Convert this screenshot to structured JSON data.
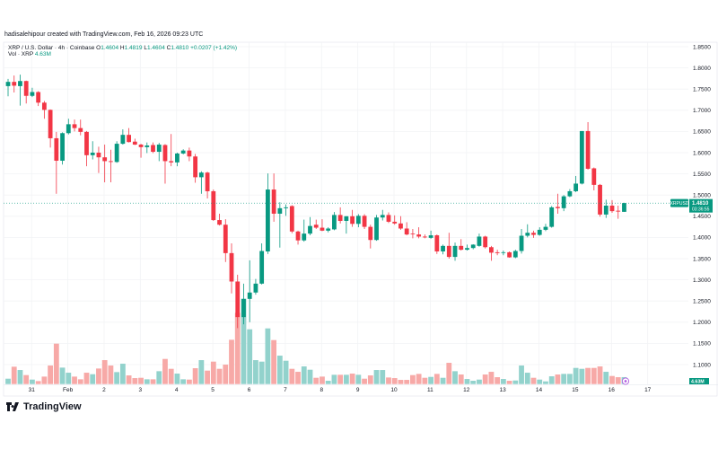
{
  "header": {
    "credit": "hadisalehipour created with TradingView.com, Feb 16, 2026 09:23 UTC"
  },
  "legend": {
    "symbol": "XRP / U.S. Dollar · 4h · Coinbase",
    "open_label": "O",
    "open": "1.4604",
    "high_label": "H",
    "high": "1.4819",
    "low_label": "L",
    "low": "1.4604",
    "close_label": "C",
    "close": "1.4810",
    "change": "+0.0207 (+1.42%)",
    "volume_label": "Vol · XRP",
    "volume": "4.63M"
  },
  "price_tag": {
    "symbol": "XRPUSD",
    "price": "1.4810",
    "countdown": "03:36:55"
  },
  "volume_tag": "4.63M",
  "brand": "TradingView",
  "colors": {
    "up": "#089981",
    "down": "#f23645",
    "volume_up": "#92d2cc",
    "volume_down": "#f7a9a7",
    "grid": "#f2f3f5",
    "event_marker": "#b060e0"
  },
  "chart_data": {
    "type": "candlestick",
    "interval": "4h",
    "ylim": [
      1.08,
      1.87
    ],
    "y_ticks": [
      "1.8500",
      "1.8000",
      "1.7500",
      "1.7000",
      "1.6500",
      "1.6000",
      "1.5500",
      "1.5000",
      "1.4500",
      "1.4000",
      "1.3500",
      "1.3000",
      "1.2500",
      "1.2000",
      "1.1500",
      "1.1000"
    ],
    "x_tick_labels": [
      "31",
      "Feb",
      "2",
      "3",
      "4",
      "5",
      "6",
      "7",
      "8",
      "9",
      "10",
      "11",
      "12",
      "13",
      "14",
      "15",
      "16",
      "17"
    ],
    "grid": true,
    "last_price": 1.481,
    "candles": [
      [
        1.757,
        1.774,
        1.733,
        1.767,
        3.6
      ],
      [
        1.767,
        1.782,
        1.742,
        1.758,
        11.6
      ],
      [
        1.757,
        1.784,
        1.711,
        1.769,
        9.4
      ],
      [
        1.769,
        1.77,
        1.716,
        1.734,
        6.0
      ],
      [
        1.734,
        1.753,
        1.731,
        1.743,
        3.0
      ],
      [
        1.743,
        1.745,
        1.71,
        1.718,
        2.0
      ],
      [
        1.718,
        1.722,
        1.68,
        1.701,
        5.0
      ],
      [
        1.701,
        1.702,
        1.612,
        1.634,
        12.4
      ],
      [
        1.634,
        1.649,
        1.503,
        1.581,
        27.0
      ],
      [
        1.581,
        1.648,
        1.572,
        1.646,
        11.0
      ],
      [
        1.646,
        1.68,
        1.643,
        1.667,
        7.6
      ],
      [
        1.667,
        1.678,
        1.65,
        1.658,
        5.0
      ],
      [
        1.658,
        1.678,
        1.641,
        1.649,
        3.2
      ],
      [
        1.649,
        1.651,
        1.568,
        1.594,
        7.6
      ],
      [
        1.594,
        1.627,
        1.584,
        1.6,
        6.6
      ],
      [
        1.6,
        1.614,
        1.552,
        1.589,
        10.4
      ],
      [
        1.589,
        1.619,
        1.53,
        1.58,
        16.0
      ],
      [
        1.58,
        1.607,
        1.53,
        1.578,
        12.4
      ],
      [
        1.578,
        1.627,
        1.576,
        1.621,
        8.0
      ],
      [
        1.621,
        1.655,
        1.619,
        1.642,
        13.6
      ],
      [
        1.642,
        1.658,
        1.624,
        1.625,
        5.8
      ],
      [
        1.626,
        1.633,
        1.618,
        1.619,
        4.0
      ],
      [
        1.619,
        1.621,
        1.588,
        1.613,
        4.2
      ],
      [
        1.613,
        1.624,
        1.599,
        1.617,
        3.2
      ],
      [
        1.618,
        1.624,
        1.599,
        1.602,
        3.2
      ],
      [
        1.602,
        1.623,
        1.58,
        1.619,
        8.6
      ],
      [
        1.618,
        1.62,
        1.527,
        1.58,
        16.8
      ],
      [
        1.58,
        1.644,
        1.568,
        1.577,
        10.2
      ],
      [
        1.577,
        1.6,
        1.568,
        1.598,
        7.0
      ],
      [
        1.598,
        1.608,
        1.596,
        1.605,
        3.2
      ],
      [
        1.605,
        1.612,
        1.58,
        1.591,
        3.0
      ],
      [
        1.591,
        1.597,
        1.529,
        1.542,
        10.6
      ],
      [
        1.542,
        1.556,
        1.503,
        1.553,
        16.0
      ],
      [
        1.553,
        1.555,
        1.492,
        1.509,
        9.0
      ],
      [
        1.509,
        1.513,
        1.439,
        1.441,
        15.0
      ],
      [
        1.441,
        1.456,
        1.428,
        1.43,
        10.2
      ],
      [
        1.43,
        1.443,
        1.342,
        1.363,
        13.0
      ],
      [
        1.363,
        1.386,
        1.268,
        1.296,
        29.6
      ],
      [
        1.296,
        1.312,
        1.186,
        1.212,
        47.6
      ],
      [
        1.212,
        1.291,
        1.195,
        1.255,
        57.0
      ],
      [
        1.255,
        1.346,
        1.2,
        1.27,
        36.6
      ],
      [
        1.27,
        1.302,
        1.265,
        1.291,
        16.0
      ],
      [
        1.291,
        1.386,
        1.289,
        1.368,
        15.0
      ],
      [
        1.367,
        1.551,
        1.361,
        1.513,
        37.2
      ],
      [
        1.513,
        1.551,
        1.437,
        1.456,
        29.4
      ],
      [
        1.456,
        1.483,
        1.376,
        1.469,
        19.0
      ],
      [
        1.469,
        1.478,
        1.451,
        1.471,
        15.6
      ],
      [
        1.474,
        1.476,
        1.41,
        1.414,
        10.2
      ],
      [
        1.414,
        1.416,
        1.383,
        1.393,
        8.2
      ],
      [
        1.393,
        1.442,
        1.39,
        1.409,
        11.8
      ],
      [
        1.409,
        1.448,
        1.405,
        1.427,
        9.6
      ],
      [
        1.43,
        1.442,
        1.42,
        1.423,
        4.2
      ],
      [
        1.423,
        1.443,
        1.415,
        1.416,
        5.0
      ],
      [
        1.416,
        1.424,
        1.412,
        1.421,
        2.2
      ],
      [
        1.419,
        1.46,
        1.417,
        1.453,
        6.2
      ],
      [
        1.453,
        1.471,
        1.433,
        1.439,
        6.2
      ],
      [
        1.439,
        1.45,
        1.409,
        1.45,
        6.2
      ],
      [
        1.45,
        1.465,
        1.425,
        1.432,
        7.0
      ],
      [
        1.432,
        1.455,
        1.424,
        1.451,
        6.2
      ],
      [
        1.451,
        1.455,
        1.42,
        1.425,
        3.6
      ],
      [
        1.425,
        1.43,
        1.374,
        1.394,
        5.8
      ],
      [
        1.394,
        1.453,
        1.392,
        1.447,
        9.4
      ],
      [
        1.447,
        1.465,
        1.44,
        1.453,
        9.4
      ],
      [
        1.453,
        1.459,
        1.434,
        1.437,
        4.4
      ],
      [
        1.437,
        1.452,
        1.43,
        1.433,
        4.0
      ],
      [
        1.433,
        1.45,
        1.418,
        1.421,
        2.8
      ],
      [
        1.421,
        1.436,
        1.405,
        1.407,
        2.8
      ],
      [
        1.409,
        1.42,
        1.398,
        1.408,
        6.0
      ],
      [
        1.407,
        1.424,
        1.398,
        1.402,
        6.8
      ],
      [
        1.402,
        1.407,
        1.398,
        1.4,
        4.2
      ],
      [
        1.399,
        1.416,
        1.397,
        1.405,
        4.8
      ],
      [
        1.405,
        1.407,
        1.361,
        1.367,
        6.8
      ],
      [
        1.367,
        1.383,
        1.36,
        1.38,
        4.2
      ],
      [
        1.38,
        1.411,
        1.35,
        1.354,
        14.2
      ],
      [
        1.354,
        1.388,
        1.345,
        1.38,
        8.6
      ],
      [
        1.38,
        1.396,
        1.369,
        1.371,
        6.4
      ],
      [
        1.371,
        1.383,
        1.369,
        1.375,
        3.4
      ],
      [
        1.375,
        1.384,
        1.372,
        1.383,
        2.2
      ],
      [
        1.38,
        1.409,
        1.378,
        1.402,
        3.0
      ],
      [
        1.402,
        1.404,
        1.374,
        1.377,
        6.4
      ],
      [
        1.377,
        1.38,
        1.345,
        1.364,
        8.2
      ],
      [
        1.365,
        1.371,
        1.358,
        1.363,
        4.6
      ],
      [
        1.364,
        1.369,
        1.358,
        1.365,
        3.4
      ],
      [
        1.365,
        1.367,
        1.352,
        1.353,
        2.2
      ],
      [
        1.353,
        1.371,
        1.351,
        1.368,
        2.4
      ],
      [
        1.368,
        1.42,
        1.362,
        1.404,
        12.4
      ],
      [
        1.404,
        1.431,
        1.4,
        1.411,
        7.6
      ],
      [
        1.411,
        1.416,
        1.399,
        1.406,
        4.2
      ],
      [
        1.406,
        1.424,
        1.404,
        1.418,
        3.0
      ],
      [
        1.418,
        1.432,
        1.415,
        1.425,
        1.8
      ],
      [
        1.425,
        1.474,
        1.423,
        1.471,
        5.2
      ],
      [
        1.472,
        1.503,
        1.456,
        1.469,
        6.4
      ],
      [
        1.469,
        1.5,
        1.462,
        1.497,
        6.8
      ],
      [
        1.497,
        1.514,
        1.495,
        1.509,
        6.8
      ],
      [
        1.509,
        1.545,
        1.507,
        1.527,
        10.8
      ],
      [
        1.527,
        1.651,
        1.525,
        1.651,
        10.2
      ],
      [
        1.651,
        1.672,
        1.56,
        1.562,
        10.8
      ],
      [
        1.563,
        1.565,
        1.511,
        1.524,
        10.8
      ],
      [
        1.524,
        1.526,
        1.449,
        1.454,
        11.8
      ],
      [
        1.454,
        1.489,
        1.446,
        1.475,
        8.2
      ],
      [
        1.475,
        1.488,
        1.458,
        1.462,
        5.4
      ],
      [
        1.463,
        1.475,
        1.444,
        1.461,
        4.6
      ],
      [
        1.4604,
        1.4819,
        1.4604,
        1.481,
        4.63
      ]
    ],
    "candle_format": [
      "open",
      "high",
      "low",
      "close",
      "volume_millions"
    ]
  }
}
